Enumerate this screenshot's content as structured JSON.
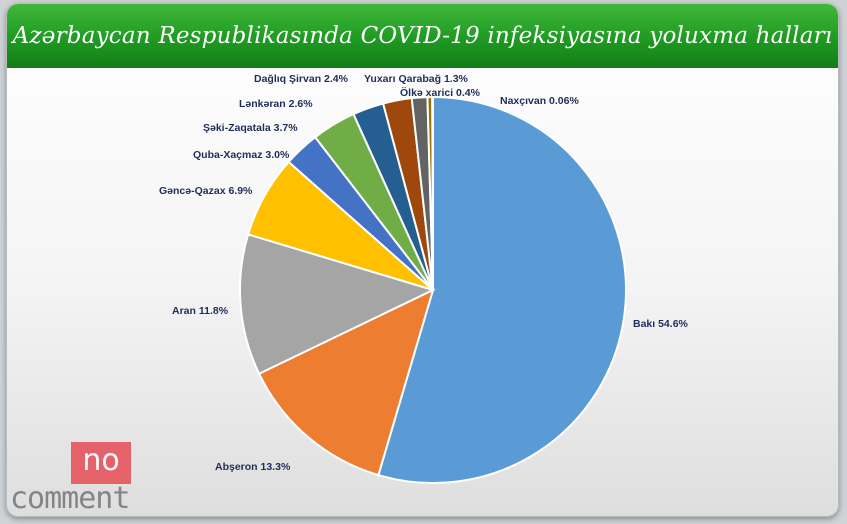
{
  "chart_data": {
    "type": "pie",
    "title": "Azərbaycan Respublikasında COVID-19 infeksiyasına yoluxma halları",
    "slices": [
      {
        "label": "Bakı",
        "value": 54.6,
        "text": "Bakı  54.6%",
        "color": "#5b9bd5"
      },
      {
        "label": "Abşeron",
        "value": 13.3,
        "text": "Abşeron 13.3%",
        "color": "#ed7d31"
      },
      {
        "label": "Aran",
        "value": 11.8,
        "text": "Aran 11.8%",
        "color": "#a5a5a5"
      },
      {
        "label": "Gəncə-Qazax",
        "value": 6.9,
        "text": "Gəncə-Qazax 6.9%",
        "color": "#ffc000"
      },
      {
        "label": "Quba-Xaçmaz",
        "value": 3.0,
        "text": "Quba-Xaçmaz 3.0%",
        "color": "#4472c4"
      },
      {
        "label": "Şəki-Zaqatala",
        "value": 3.7,
        "text": "Şəki-Zaqatala 3.7%",
        "color": "#70ad47"
      },
      {
        "label": "Lənkəran",
        "value": 2.6,
        "text": "Lənkəran 2.6%",
        "color": "#255e91"
      },
      {
        "label": "Dağlıq Şirvan",
        "value": 2.4,
        "text": "Dağlıq Şirvan 2.4%",
        "color": "#9e480e"
      },
      {
        "label": "Yuxarı Qarabağ",
        "value": 1.3,
        "text": "Yuxarı Qarabağ 1.3%",
        "color": "#636363"
      },
      {
        "label": "Ölkə xarici",
        "value": 0.4,
        "text": "Ölkə xarici 0.4%",
        "color": "#997300"
      },
      {
        "label": "Naxçıvan",
        "value": 0.06,
        "text": "Naxçıvan 0.06%",
        "color": "#264478"
      }
    ],
    "legend": "none"
  },
  "watermark": {
    "top": "no",
    "bottom": "comment"
  }
}
